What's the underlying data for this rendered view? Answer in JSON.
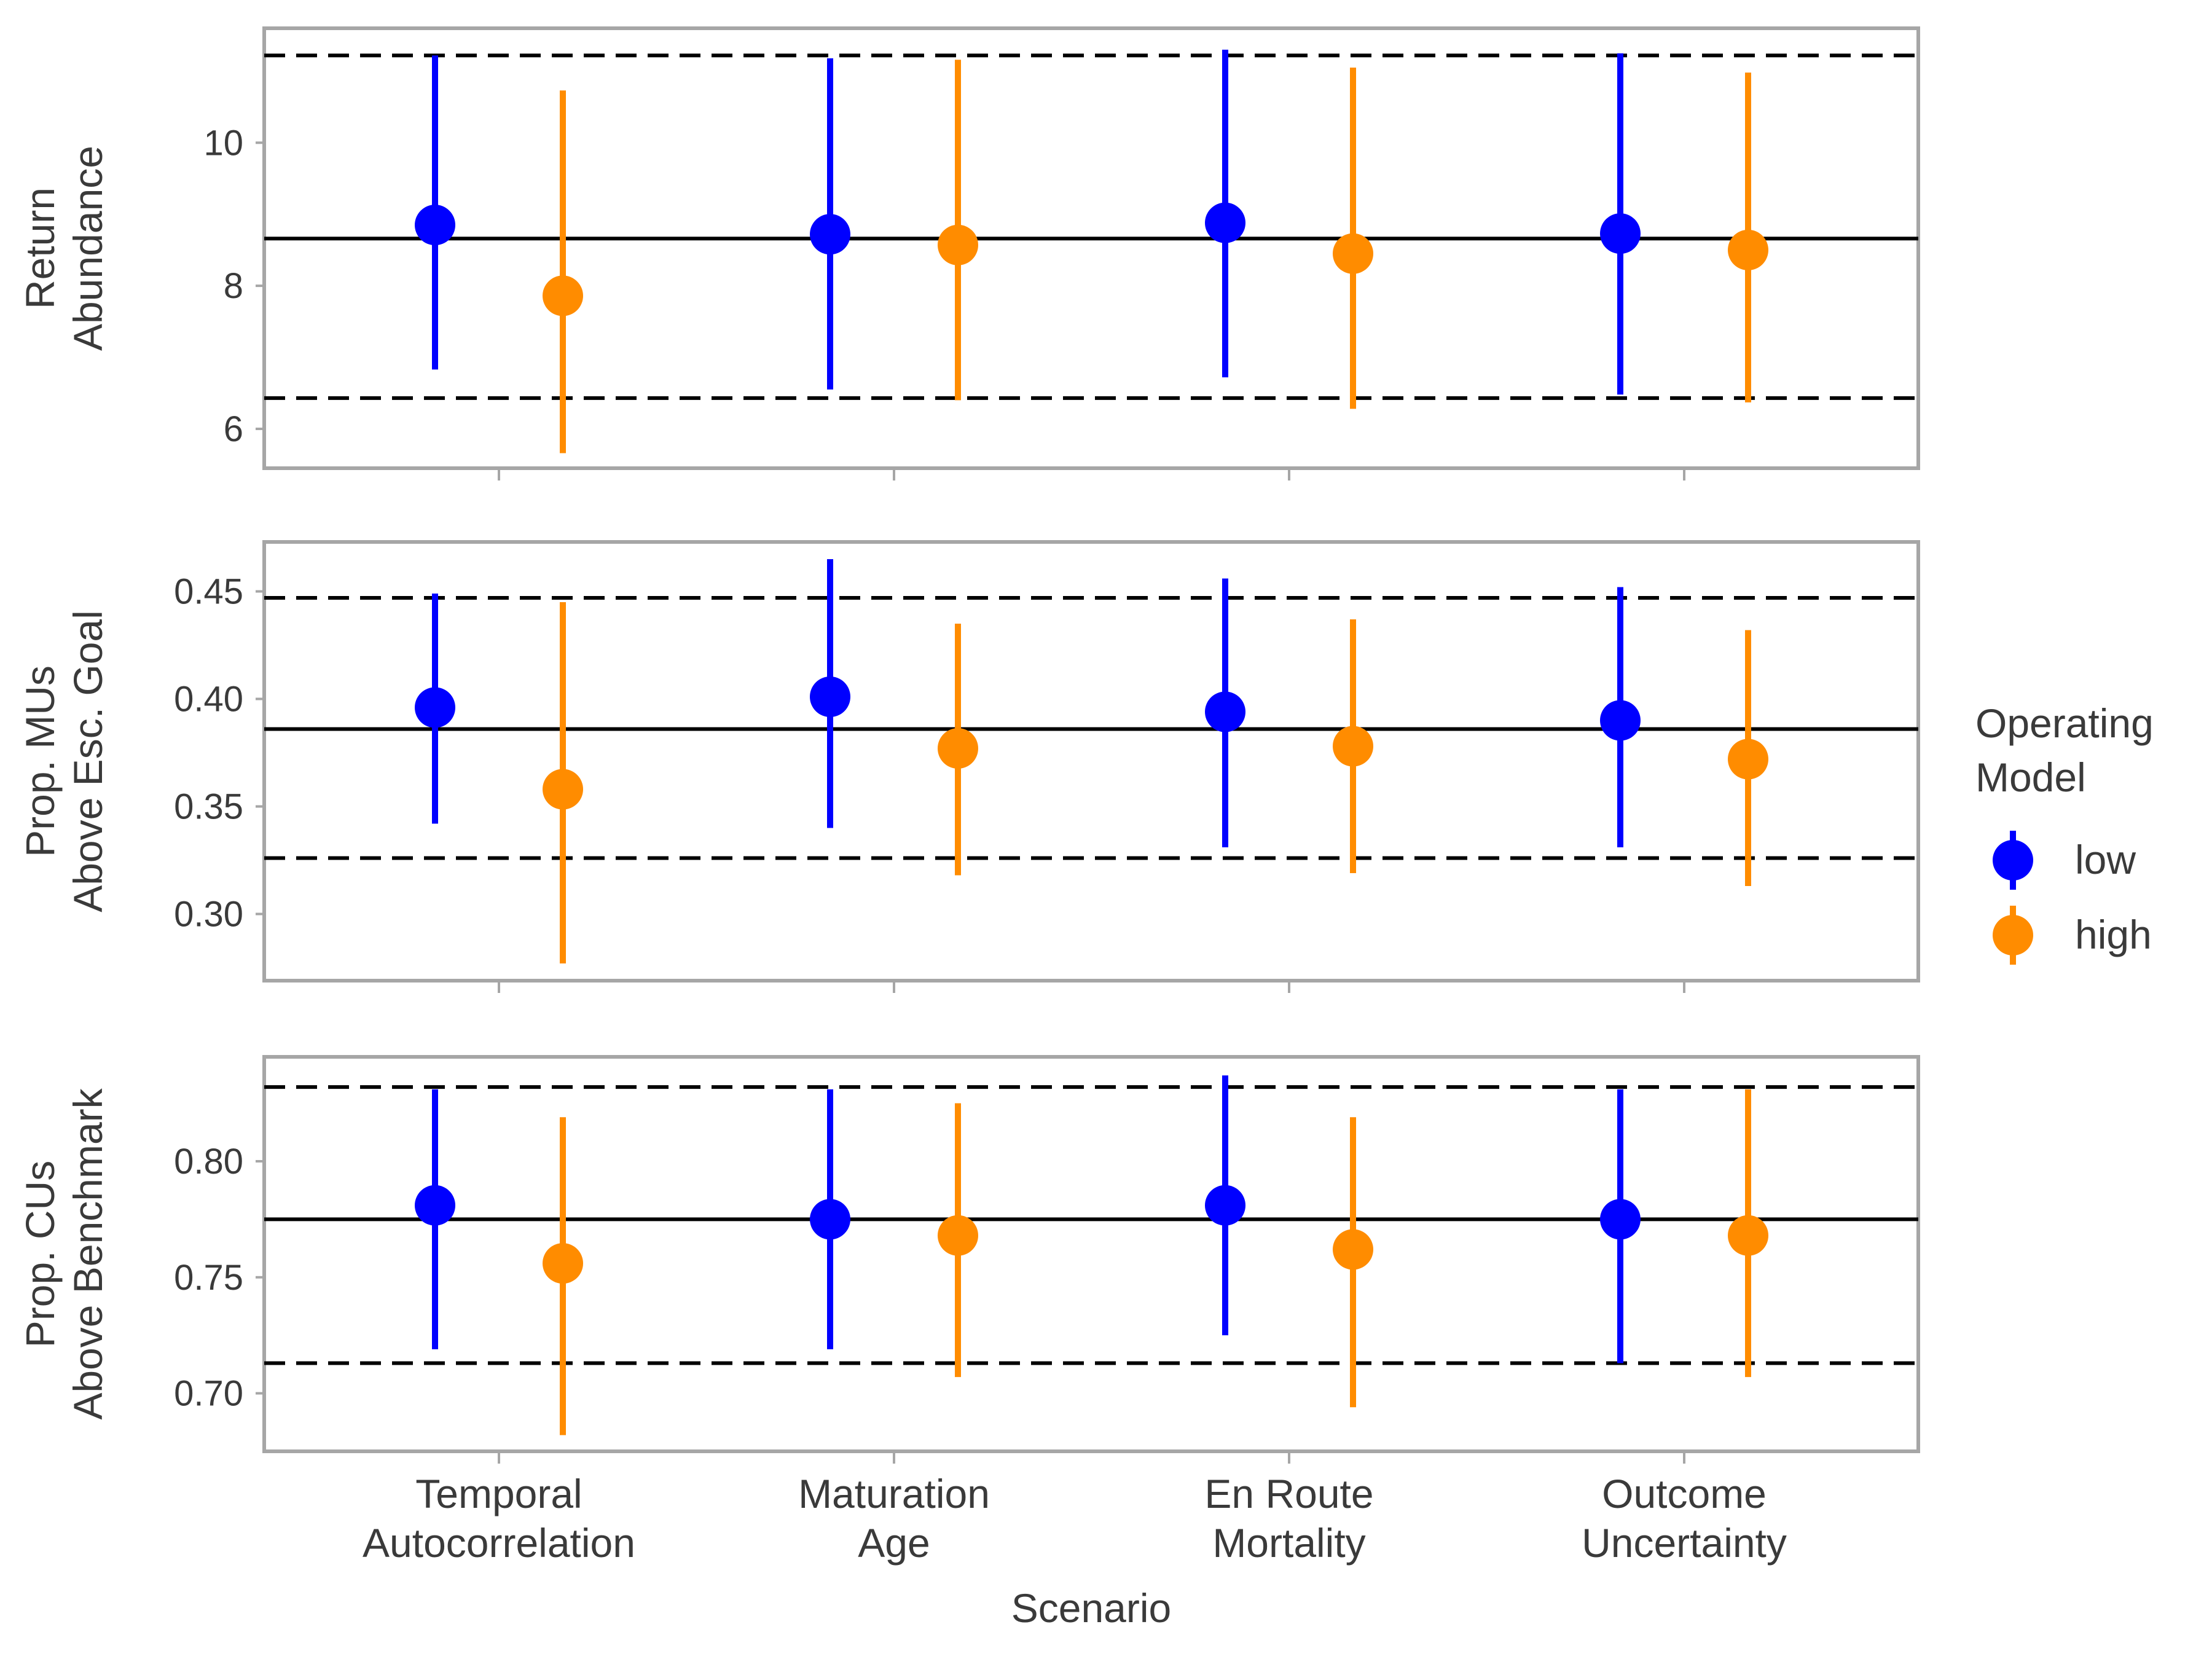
{
  "chart_data": {
    "type": "errorbar",
    "xlabel": "Scenario",
    "categories": [
      [
        "Temporal",
        "Autocorrelation"
      ],
      [
        "Maturation",
        "Age"
      ],
      [
        "En Route",
        "Mortality"
      ],
      [
        "Outcome",
        "Uncertainty"
      ]
    ],
    "legend": {
      "title": [
        "Operating",
        "Model"
      ],
      "placement": "right",
      "entries": [
        {
          "label": "low",
          "color": "#0000ff"
        },
        {
          "label": "high",
          "color": "#ff8c00"
        }
      ]
    },
    "colors": {
      "low": "#0000ff",
      "high": "#ff8c00",
      "reference": "#000000",
      "frame": "#a6a6a6"
    },
    "panels": [
      {
        "ylabel": [
          "Return",
          "Abundance"
        ],
        "ylim": [
          5.45,
          11.6
        ],
        "yticks": [
          6,
          8,
          10
        ],
        "ytick_labels": [
          "6",
          "8",
          "10"
        ],
        "reference": {
          "median": 8.66,
          "lower": 6.43,
          "upper": 11.22
        },
        "series": [
          {
            "name": "low",
            "values": [
              8.85,
              8.72,
              8.88,
              8.73
            ],
            "lower": [
              6.83,
              6.55,
              6.72,
              6.48
            ],
            "upper": [
              11.22,
              11.18,
              11.3,
              11.25
            ]
          },
          {
            "name": "high",
            "values": [
              7.86,
              8.57,
              8.45,
              8.5
            ],
            "lower": [
              5.66,
              6.4,
              6.28,
              6.37
            ],
            "upper": [
              10.73,
              11.16,
              11.05,
              10.98
            ]
          }
        ]
      },
      {
        "ylabel": [
          "Prop. MUs",
          "Above Esc. Goal"
        ],
        "ylim": [
          0.269,
          0.473
        ],
        "yticks": [
          0.3,
          0.35,
          0.4,
          0.45
        ],
        "ytick_labels": [
          "0.30",
          "0.35",
          "0.40",
          "0.45"
        ],
        "reference": {
          "median": 0.386,
          "lower": 0.326,
          "upper": 0.447
        },
        "series": [
          {
            "name": "low",
            "values": [
              0.396,
              0.401,
              0.394,
              0.39
            ],
            "lower": [
              0.342,
              0.34,
              0.331,
              0.331
            ],
            "upper": [
              0.449,
              0.465,
              0.456,
              0.452
            ]
          },
          {
            "name": "high",
            "values": [
              0.358,
              0.377,
              0.378,
              0.372
            ],
            "lower": [
              0.277,
              0.318,
              0.319,
              0.313
            ],
            "upper": [
              0.445,
              0.435,
              0.437,
              0.432
            ]
          }
        ]
      },
      {
        "ylabel": [
          "Prop. CUs",
          "Above Benchmark"
        ],
        "ylim": [
          0.675,
          0.845
        ],
        "yticks": [
          0.7,
          0.75,
          0.8
        ],
        "ytick_labels": [
          "0.70",
          "0.75",
          "0.80"
        ],
        "reference": {
          "median": 0.775,
          "lower": 0.713,
          "upper": 0.832
        },
        "series": [
          {
            "name": "low",
            "values": [
              0.781,
              0.775,
              0.781,
              0.775
            ],
            "lower": [
              0.719,
              0.719,
              0.725,
              0.713
            ],
            "upper": [
              0.831,
              0.831,
              0.837,
              0.831
            ]
          },
          {
            "name": "high",
            "values": [
              0.756,
              0.768,
              0.762,
              0.768
            ],
            "lower": [
              0.682,
              0.707,
              0.694,
              0.707
            ],
            "upper": [
              0.819,
              0.825,
              0.819,
              0.831
            ]
          }
        ]
      }
    ]
  }
}
